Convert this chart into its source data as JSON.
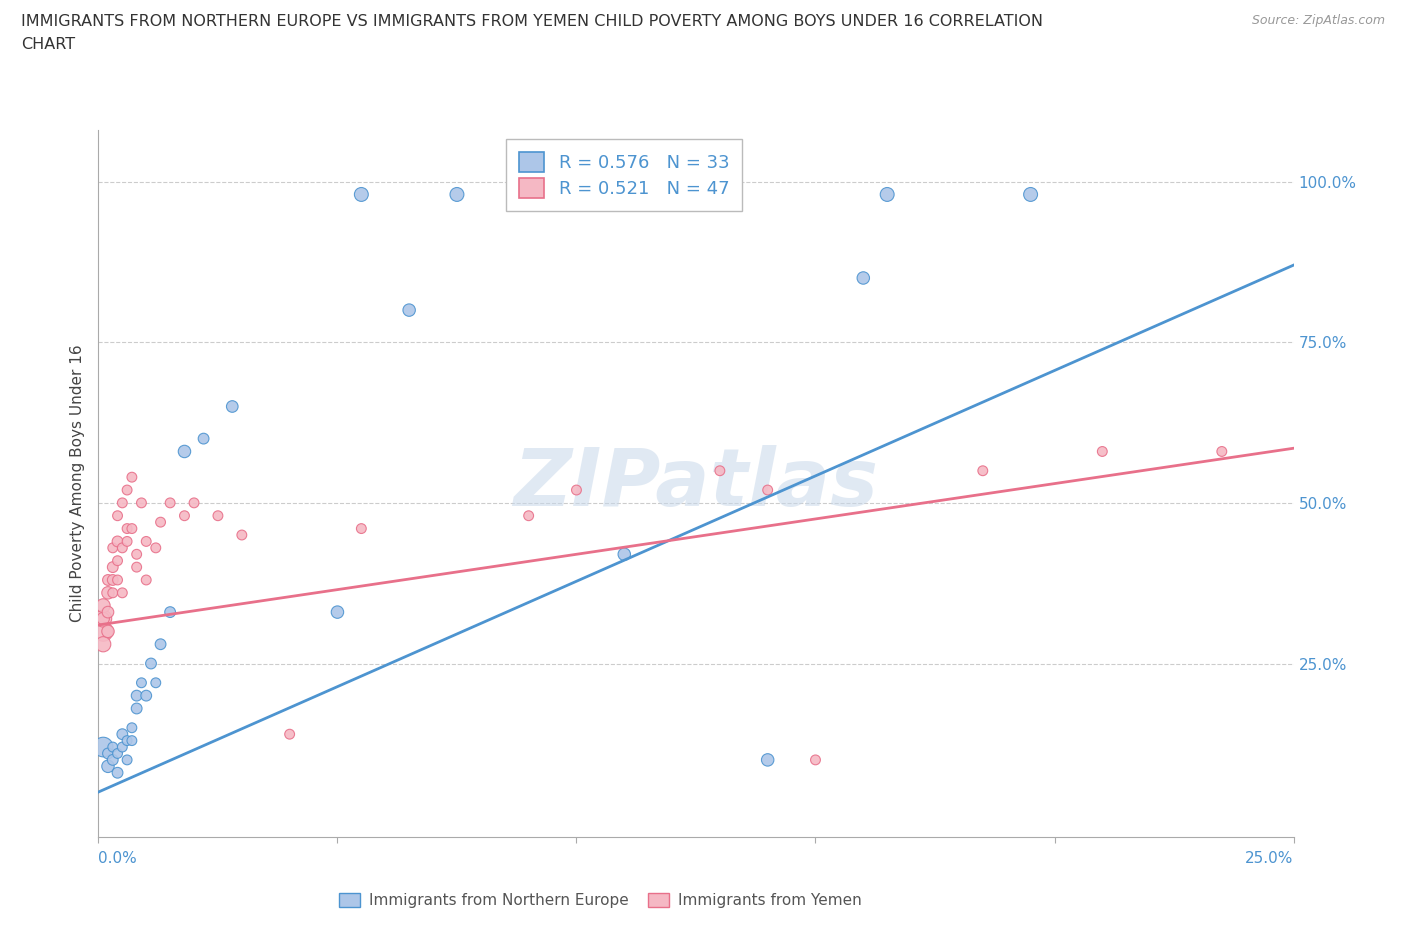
{
  "title_line1": "IMMIGRANTS FROM NORTHERN EUROPE VS IMMIGRANTS FROM YEMEN CHILD POVERTY AMONG BOYS UNDER 16 CORRELATION",
  "title_line2": "CHART",
  "source_text": "Source: ZipAtlas.com",
  "ylabel": "Child Poverty Among Boys Under 16",
  "blue_color": "#adc6e8",
  "blue_line_color": "#4d94d0",
  "pink_color": "#f5b8c4",
  "pink_line_color": "#e8708a",
  "legend_R_blue": "R = 0.576",
  "legend_N_blue": "N = 33",
  "legend_R_pink": "R = 0.521",
  "legend_N_pink": "N = 47",
  "legend_text_blue": "Immigrants from Northern Europe",
  "legend_text_pink": "Immigrants from Yemen",
  "watermark": "ZIPatlas",
  "xlim": [
    0.0,
    0.25
  ],
  "ylim": [
    -0.02,
    1.08
  ],
  "blue_line_y0": 0.05,
  "blue_line_y1": 0.87,
  "pink_line_y0": 0.31,
  "pink_line_y1": 0.585,
  "blue_scatter": [
    [
      0.001,
      0.12
    ],
    [
      0.002,
      0.09
    ],
    [
      0.002,
      0.11
    ],
    [
      0.003,
      0.1
    ],
    [
      0.003,
      0.12
    ],
    [
      0.004,
      0.08
    ],
    [
      0.004,
      0.11
    ],
    [
      0.005,
      0.14
    ],
    [
      0.005,
      0.12
    ],
    [
      0.006,
      0.1
    ],
    [
      0.006,
      0.13
    ],
    [
      0.007,
      0.15
    ],
    [
      0.007,
      0.13
    ],
    [
      0.008,
      0.18
    ],
    [
      0.008,
      0.2
    ],
    [
      0.009,
      0.22
    ],
    [
      0.01,
      0.2
    ],
    [
      0.011,
      0.25
    ],
    [
      0.012,
      0.22
    ],
    [
      0.013,
      0.28
    ],
    [
      0.015,
      0.33
    ],
    [
      0.018,
      0.58
    ],
    [
      0.022,
      0.6
    ],
    [
      0.028,
      0.65
    ],
    [
      0.05,
      0.33
    ],
    [
      0.055,
      0.98
    ],
    [
      0.065,
      0.8
    ],
    [
      0.075,
      0.98
    ],
    [
      0.11,
      0.42
    ],
    [
      0.14,
      0.1
    ],
    [
      0.16,
      0.85
    ],
    [
      0.165,
      0.98
    ],
    [
      0.195,
      0.98
    ]
  ],
  "blue_dot_sizes": [
    200,
    80,
    60,
    60,
    50,
    60,
    50,
    60,
    50,
    50,
    50,
    50,
    50,
    60,
    60,
    50,
    60,
    60,
    50,
    60,
    60,
    80,
    60,
    70,
    80,
    100,
    80,
    100,
    80,
    80,
    80,
    100,
    100
  ],
  "pink_scatter": [
    [
      0.001,
      0.3
    ],
    [
      0.001,
      0.32
    ],
    [
      0.001,
      0.28
    ],
    [
      0.001,
      0.34
    ],
    [
      0.001,
      0.32
    ],
    [
      0.002,
      0.36
    ],
    [
      0.002,
      0.3
    ],
    [
      0.002,
      0.33
    ],
    [
      0.002,
      0.38
    ],
    [
      0.003,
      0.38
    ],
    [
      0.003,
      0.4
    ],
    [
      0.003,
      0.43
    ],
    [
      0.003,
      0.36
    ],
    [
      0.004,
      0.44
    ],
    [
      0.004,
      0.41
    ],
    [
      0.004,
      0.38
    ],
    [
      0.004,
      0.48
    ],
    [
      0.005,
      0.5
    ],
    [
      0.005,
      0.43
    ],
    [
      0.005,
      0.36
    ],
    [
      0.006,
      0.52
    ],
    [
      0.006,
      0.44
    ],
    [
      0.006,
      0.46
    ],
    [
      0.007,
      0.46
    ],
    [
      0.007,
      0.54
    ],
    [
      0.008,
      0.42
    ],
    [
      0.008,
      0.4
    ],
    [
      0.009,
      0.5
    ],
    [
      0.01,
      0.44
    ],
    [
      0.01,
      0.38
    ],
    [
      0.012,
      0.43
    ],
    [
      0.013,
      0.47
    ],
    [
      0.015,
      0.5
    ],
    [
      0.018,
      0.48
    ],
    [
      0.02,
      0.5
    ],
    [
      0.025,
      0.48
    ],
    [
      0.03,
      0.45
    ],
    [
      0.04,
      0.14
    ],
    [
      0.055,
      0.46
    ],
    [
      0.09,
      0.48
    ],
    [
      0.1,
      0.52
    ],
    [
      0.13,
      0.55
    ],
    [
      0.14,
      0.52
    ],
    [
      0.15,
      0.1
    ],
    [
      0.185,
      0.55
    ],
    [
      0.21,
      0.58
    ],
    [
      0.235,
      0.58
    ]
  ],
  "pink_dot_sizes": [
    200,
    150,
    120,
    100,
    80,
    80,
    80,
    70,
    60,
    60,
    60,
    50,
    50,
    60,
    50,
    50,
    50,
    50,
    50,
    50,
    50,
    50,
    50,
    50,
    50,
    50,
    50,
    50,
    50,
    50,
    50,
    50,
    50,
    50,
    50,
    50,
    50,
    50,
    50,
    50,
    50,
    50,
    50,
    50,
    50,
    50,
    50
  ]
}
